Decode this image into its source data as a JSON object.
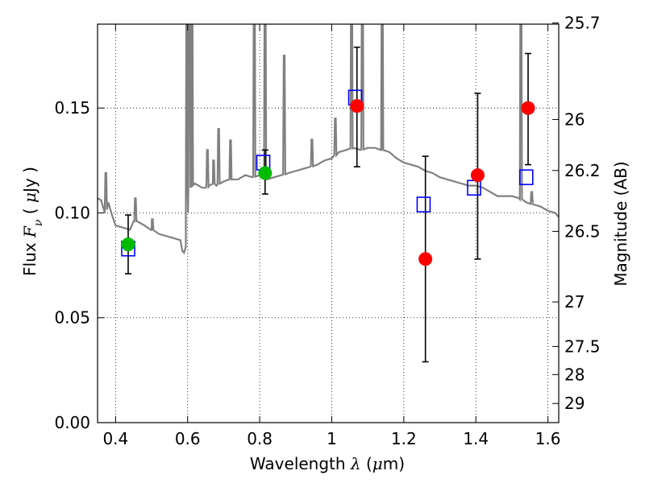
{
  "chart_data": {
    "type": "scatter",
    "xlabel": "Wavelength λ (μm)",
    "ylabel": "Flux F_ν (μJy)",
    "ylabel_right": "Magnitude (AB)",
    "xlim": [
      0.35,
      1.63
    ],
    "ylim": [
      0.0,
      0.19
    ],
    "grid": true,
    "x_ticks": [
      0.4,
      0.6,
      0.8,
      1.0,
      1.2,
      1.4,
      1.6
    ],
    "x_tick_labels": [
      "0.4",
      "0.6",
      "0.8",
      "1",
      "1.2",
      "1.4",
      "1.6"
    ],
    "y_ticks": [
      0.0,
      0.05,
      0.1,
      0.15
    ],
    "y_tick_labels": [
      "0.00",
      "0.05",
      "0.10",
      "0.15"
    ],
    "mag_ticks": [
      25.7,
      26,
      26.2,
      26.5,
      27,
      27.5,
      28,
      29
    ],
    "mag_tick_labels": [
      "25.7",
      "26",
      "26.2",
      "26.5",
      "27",
      "27.5",
      "28",
      "29"
    ],
    "spectrum": {
      "color": "#808080",
      "x": [
        0.35,
        0.36,
        0.365,
        0.37,
        0.38,
        0.39,
        0.4,
        0.42,
        0.44,
        0.45,
        0.46,
        0.48,
        0.5,
        0.52,
        0.54,
        0.56,
        0.58,
        0.585,
        0.59,
        0.595,
        0.6,
        0.61,
        0.62,
        0.63,
        0.64,
        0.65,
        0.66,
        0.67,
        0.68,
        0.69,
        0.7,
        0.72,
        0.74,
        0.76,
        0.78,
        0.8,
        0.82,
        0.84,
        0.86,
        0.88,
        0.9,
        0.92,
        0.94,
        0.96,
        0.98,
        1.0,
        1.02,
        1.04,
        1.06,
        1.08,
        1.1,
        1.12,
        1.14,
        1.16,
        1.18,
        1.2,
        1.22,
        1.24,
        1.26,
        1.28,
        1.3,
        1.32,
        1.34,
        1.36,
        1.38,
        1.4,
        1.42,
        1.44,
        1.46,
        1.48,
        1.5,
        1.52,
        1.54,
        1.56,
        1.58,
        1.6,
        1.62,
        1.63
      ],
      "y": [
        0.107,
        0.106,
        0.103,
        0.1,
        0.105,
        0.099,
        0.094,
        0.093,
        0.092,
        0.096,
        0.096,
        0.094,
        0.092,
        0.09,
        0.089,
        0.088,
        0.087,
        0.082,
        0.081,
        0.084,
        0.111,
        0.113,
        0.114,
        0.113,
        0.112,
        0.112,
        0.113,
        0.114,
        0.113,
        0.114,
        0.115,
        0.116,
        0.116,
        0.118,
        0.117,
        0.118,
        0.116,
        0.117,
        0.118,
        0.119,
        0.12,
        0.121,
        0.122,
        0.123,
        0.125,
        0.126,
        0.129,
        0.13,
        0.131,
        0.13,
        0.131,
        0.131,
        0.13,
        0.129,
        0.126,
        0.124,
        0.123,
        0.122,
        0.12,
        0.119,
        0.117,
        0.116,
        0.115,
        0.114,
        0.113,
        0.113,
        0.112,
        0.11,
        0.108,
        0.108,
        0.108,
        0.107,
        0.105,
        0.104,
        0.103,
        0.101,
        0.1,
        0.098
      ],
      "emission_lines": [
        {
          "x": 0.373,
          "peak": 0.119
        },
        {
          "x": 0.455,
          "peak": 0.107
        },
        {
          "x": 0.502,
          "peak": 0.097
        },
        {
          "x": 0.598,
          "peak": 0.22
        },
        {
          "x": 0.605,
          "peak": 0.22
        },
        {
          "x": 0.612,
          "peak": 0.22
        },
        {
          "x": 0.655,
          "peak": 0.13
        },
        {
          "x": 0.672,
          "peak": 0.125
        },
        {
          "x": 0.686,
          "peak": 0.14
        },
        {
          "x": 0.719,
          "peak": 0.135
        },
        {
          "x": 0.785,
          "peak": 0.22
        },
        {
          "x": 0.815,
          "peak": 0.22
        },
        {
          "x": 0.868,
          "peak": 0.175
        },
        {
          "x": 0.945,
          "peak": 0.135
        },
        {
          "x": 1.01,
          "peak": 0.145
        },
        {
          "x": 1.055,
          "peak": 0.22
        },
        {
          "x": 1.085,
          "peak": 0.22
        },
        {
          "x": 1.14,
          "peak": 0.22
        },
        {
          "x": 1.525,
          "peak": 0.22
        },
        {
          "x": 1.555,
          "peak": 0.11
        }
      ]
    },
    "observed": [
      {
        "x": 0.435,
        "y": 0.085,
        "yerr_low": 0.071,
        "yerr_high": 0.099,
        "color": "#00bb00"
      },
      {
        "x": 0.815,
        "y": 0.119,
        "yerr_low": 0.109,
        "yerr_high": 0.13,
        "color": "#00bb00"
      },
      {
        "x": 1.07,
        "y": 0.151,
        "yerr_low": 0.122,
        "yerr_high": 0.179,
        "color": "#ff0000"
      },
      {
        "x": 1.26,
        "y": 0.078,
        "yerr_low": 0.029,
        "yerr_high": 0.127,
        "color": "#ff0000"
      },
      {
        "x": 1.405,
        "y": 0.118,
        "yerr_low": 0.078,
        "yerr_high": 0.157,
        "color": "#ff0000"
      },
      {
        "x": 1.545,
        "y": 0.15,
        "yerr_low": 0.123,
        "yerr_high": 0.176,
        "color": "#ff0000"
      }
    ],
    "model": [
      {
        "x": 0.435,
        "y": 0.083
      },
      {
        "x": 0.81,
        "y": 0.124
      },
      {
        "x": 1.065,
        "y": 0.155
      },
      {
        "x": 1.255,
        "y": 0.104
      },
      {
        "x": 1.395,
        "y": 0.112
      },
      {
        "x": 1.54,
        "y": 0.117
      }
    ],
    "model_color": "#0000ff"
  }
}
